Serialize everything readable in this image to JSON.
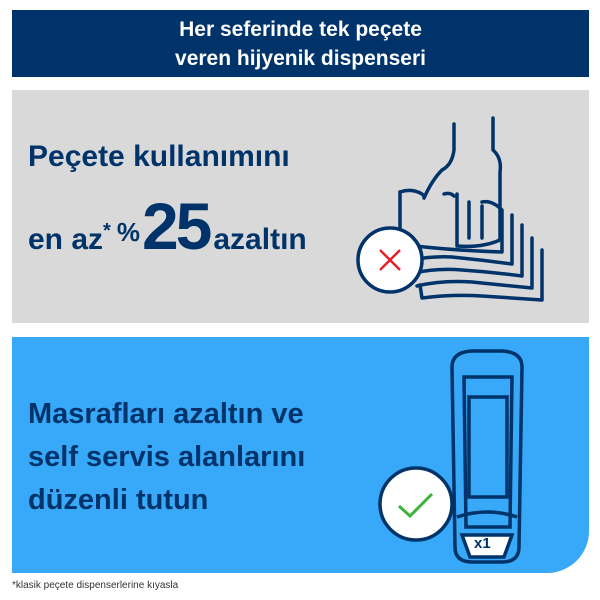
{
  "header": {
    "line1": "Her seferinde tek peçete",
    "line2": "veren hijyenik dispenseri"
  },
  "panel1": {
    "line1": "Peçete kullanımını",
    "prefix": "en az",
    "asterisk": "*",
    "percent_sign": "%",
    "number": "25",
    "suffix": "azaltın",
    "icon": "hand-napkins-icon",
    "badge_icon": "x-mark-icon"
  },
  "panel2": {
    "line1": "Masrafları azaltın ve",
    "line2": "self servis alanlarını",
    "line3": "düzenli tutun",
    "icon": "dispenser-icon",
    "badge_icon": "check-mark-icon",
    "dispenser_label": "x1"
  },
  "footnote": "*klasik peçete dispenserlerine kıyasla",
  "colors": {
    "navy": "#00336a",
    "blue": "#38a9f8",
    "gray": "#d9d9d9",
    "red": "#e8202a",
    "green": "#3cb43c"
  }
}
